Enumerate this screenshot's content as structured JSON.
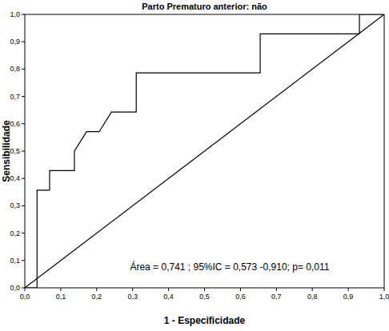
{
  "chart_data": {
    "type": "line",
    "title": "Parto Prematuro anterior: não",
    "x_label": "1 - Especificidade",
    "y_label": "Sensibilidade",
    "annotation": "Área = 0,741 ; 95%IC = 0,573 -0,910;  p= 0,011",
    "xlim": [
      0,
      1
    ],
    "ylim": [
      0,
      1
    ],
    "xticks": [
      {
        "value": 0,
        "label": "0,0"
      },
      {
        "value": 0.1,
        "label": "0,1"
      },
      {
        "value": 0.2,
        "label": "0,2"
      },
      {
        "value": 0.3,
        "label": "0,3"
      },
      {
        "value": 0.4,
        "label": "0,4"
      },
      {
        "value": 0.5,
        "label": "0,5"
      },
      {
        "value": 0.6,
        "label": "0,6"
      },
      {
        "value": 0.7,
        "label": "0,7"
      },
      {
        "value": 0.8,
        "label": "0,8"
      },
      {
        "value": 0.9,
        "label": "0,9"
      },
      {
        "value": 1,
        "label": "1,0"
      }
    ],
    "yticks": [
      {
        "value": 0,
        "label": "0,0"
      },
      {
        "value": 0.1,
        "label": "0,1"
      },
      {
        "value": 0.2,
        "label": "0,2"
      },
      {
        "value": 0.3,
        "label": "0,3"
      },
      {
        "value": 0.4,
        "label": "0,4"
      },
      {
        "value": 0.5,
        "label": "0,5"
      },
      {
        "value": 0.6,
        "label": "0,6"
      },
      {
        "value": 0.7,
        "label": "0,7"
      },
      {
        "value": 0.8,
        "label": "0,8"
      },
      {
        "value": 0.9,
        "label": "0,9"
      },
      {
        "value": 1,
        "label": "1,0"
      }
    ],
    "grid": false,
    "series": [
      {
        "color": "#000000",
        "line_style": "solid",
        "x": [
          0,
          0.034,
          0.034,
          0.069,
          0.069,
          0.138,
          0.138,
          0.172,
          0.207,
          0.241,
          0.31,
          0.31,
          0.655,
          0.655,
          0.931,
          0.931,
          1
        ],
        "values": [
          0,
          0,
          0.357,
          0.357,
          0.429,
          0.429,
          0.5,
          0.571,
          0.571,
          0.643,
          0.643,
          0.786,
          0.786,
          0.929,
          0.929,
          1,
          1
        ]
      },
      {
        "color": "#000000",
        "line_style": "solid",
        "x": [
          0,
          1
        ],
        "values": [
          0,
          1
        ]
      }
    ]
  }
}
